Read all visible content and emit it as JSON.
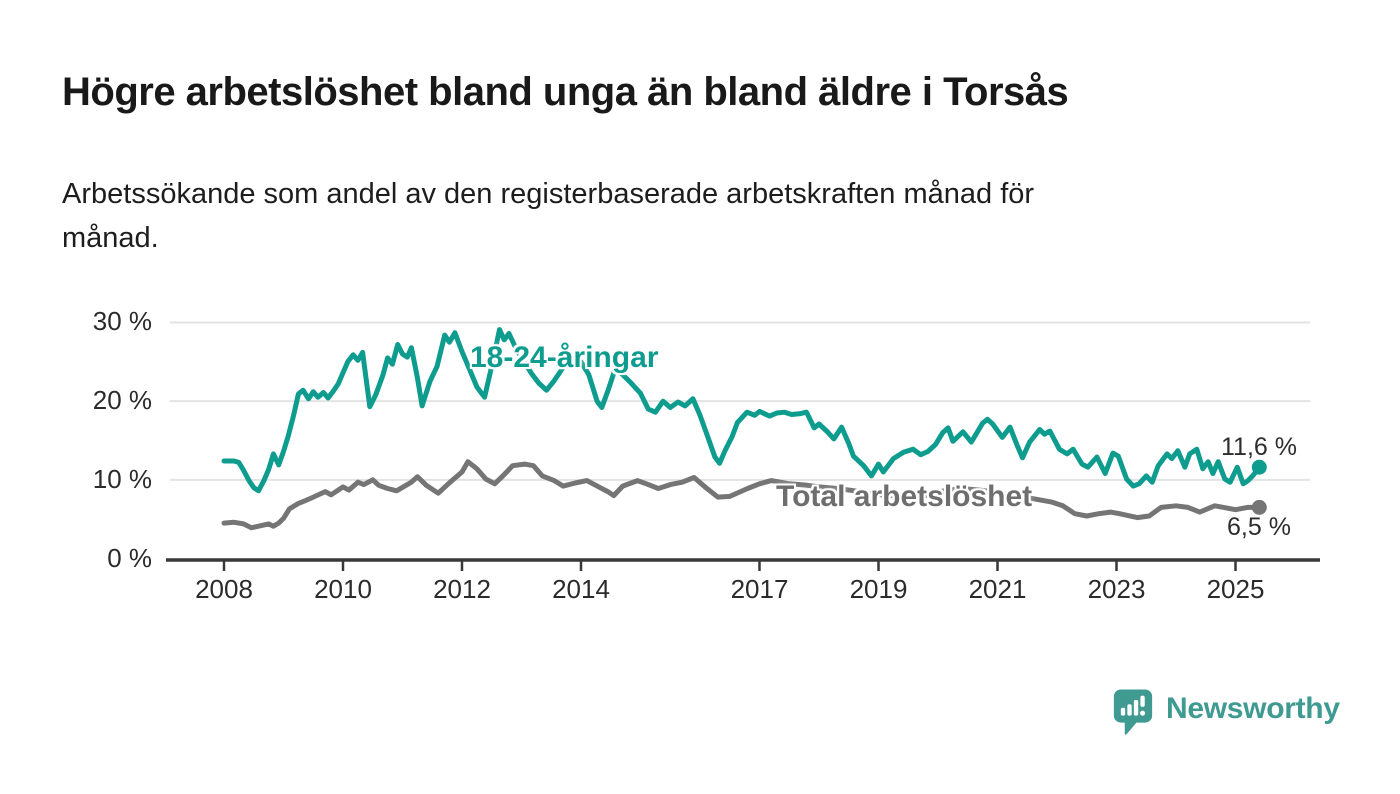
{
  "header": {
    "title": "Högre arbetslöshet bland unga än bland äldre i Torsås",
    "subtitle_lines": [
      "Arbetssökande som andel av den registerbaserade arbetskraften månad för",
      "månad."
    ]
  },
  "chart_data": {
    "type": "line",
    "unit": "%",
    "grid": true,
    "x_axis": {
      "ticks": [
        {
          "year": 2008,
          "label": "2008"
        },
        {
          "year": 2010,
          "label": "2010"
        },
        {
          "year": 2012,
          "label": "2012"
        },
        {
          "year": 2014,
          "label": "2014"
        },
        {
          "year": 2017,
          "label": "2017"
        },
        {
          "year": 2019,
          "label": "2019"
        },
        {
          "year": 2021,
          "label": "2021"
        },
        {
          "year": 2023,
          "label": "2023"
        },
        {
          "year": 2025,
          "label": "2025"
        }
      ],
      "range_years": [
        2007.2,
        2026.4
      ]
    },
    "y_axis": {
      "ticks": [
        {
          "value": 0,
          "label": "0 %"
        },
        {
          "value": 10,
          "label": "10 %"
        },
        {
          "value": 20,
          "label": "20 %"
        },
        {
          "value": 30,
          "label": "30 %"
        }
      ],
      "range": [
        0,
        30
      ]
    },
    "series": [
      {
        "name": "18-24-åringar",
        "color": "#0e9c8f",
        "end_label": "11,6 %",
        "end_value": 11.6,
        "points": [
          [
            2008.0,
            12.4
          ],
          [
            2008.17,
            12.4
          ],
          [
            2008.25,
            12.2
          ],
          [
            2008.33,
            11.2
          ],
          [
            2008.42,
            9.9
          ],
          [
            2008.5,
            9.0
          ],
          [
            2008.58,
            8.6
          ],
          [
            2008.67,
            9.9
          ],
          [
            2008.75,
            11.3
          ],
          [
            2008.83,
            13.3
          ],
          [
            2008.92,
            11.9
          ],
          [
            2009.0,
            13.6
          ],
          [
            2009.08,
            15.6
          ],
          [
            2009.17,
            18.2
          ],
          [
            2009.25,
            20.9
          ],
          [
            2009.33,
            21.4
          ],
          [
            2009.42,
            20.3
          ],
          [
            2009.5,
            21.2
          ],
          [
            2009.58,
            20.5
          ],
          [
            2009.67,
            21.1
          ],
          [
            2009.75,
            20.4
          ],
          [
            2009.83,
            21.2
          ],
          [
            2009.92,
            22.2
          ],
          [
            2010.0,
            23.6
          ],
          [
            2010.08,
            25.0
          ],
          [
            2010.17,
            25.9
          ],
          [
            2010.25,
            25.2
          ],
          [
            2010.33,
            26.2
          ],
          [
            2010.45,
            19.3
          ],
          [
            2010.55,
            20.8
          ],
          [
            2010.67,
            23.3
          ],
          [
            2010.75,
            25.5
          ],
          [
            2010.83,
            24.7
          ],
          [
            2010.92,
            27.2
          ],
          [
            2011.0,
            26.0
          ],
          [
            2011.08,
            25.6
          ],
          [
            2011.15,
            26.8
          ],
          [
            2011.25,
            23.0
          ],
          [
            2011.33,
            19.4
          ],
          [
            2011.46,
            22.5
          ],
          [
            2011.58,
            24.4
          ],
          [
            2011.71,
            28.4
          ],
          [
            2011.79,
            27.5
          ],
          [
            2011.88,
            28.7
          ],
          [
            2012.0,
            26.3
          ],
          [
            2012.13,
            24.0
          ],
          [
            2012.25,
            21.8
          ],
          [
            2012.38,
            20.5
          ],
          [
            2012.5,
            24.5
          ],
          [
            2012.63,
            29.1
          ],
          [
            2012.71,
            27.8
          ],
          [
            2012.79,
            28.6
          ],
          [
            2012.92,
            26.5
          ],
          [
            2013.04,
            25.0
          ],
          [
            2013.17,
            23.5
          ],
          [
            2013.29,
            22.3
          ],
          [
            2013.42,
            21.4
          ],
          [
            2013.54,
            22.5
          ],
          [
            2013.71,
            24.4
          ],
          [
            2013.88,
            25.4
          ],
          [
            2014.0,
            25.0
          ],
          [
            2014.13,
            23.4
          ],
          [
            2014.27,
            20.0
          ],
          [
            2014.35,
            19.2
          ],
          [
            2014.46,
            21.5
          ],
          [
            2014.58,
            24.2
          ],
          [
            2014.71,
            23.3
          ],
          [
            2014.83,
            22.4
          ],
          [
            2015.0,
            21.0
          ],
          [
            2015.13,
            19.0
          ],
          [
            2015.25,
            18.6
          ],
          [
            2015.38,
            20.0
          ],
          [
            2015.5,
            19.2
          ],
          [
            2015.63,
            19.9
          ],
          [
            2015.75,
            19.4
          ],
          [
            2015.88,
            20.3
          ],
          [
            2016.0,
            18.2
          ],
          [
            2016.13,
            15.5
          ],
          [
            2016.25,
            12.9
          ],
          [
            2016.33,
            12.1
          ],
          [
            2016.42,
            13.7
          ],
          [
            2016.54,
            15.5
          ],
          [
            2016.63,
            17.3
          ],
          [
            2016.79,
            18.6
          ],
          [
            2016.92,
            18.2
          ],
          [
            2017.0,
            18.7
          ],
          [
            2017.17,
            18.1
          ],
          [
            2017.29,
            18.5
          ],
          [
            2017.42,
            18.6
          ],
          [
            2017.54,
            18.3
          ],
          [
            2017.67,
            18.4
          ],
          [
            2017.79,
            18.6
          ],
          [
            2017.92,
            16.6
          ],
          [
            2018.0,
            17.1
          ],
          [
            2018.13,
            16.2
          ],
          [
            2018.25,
            15.2
          ],
          [
            2018.38,
            16.7
          ],
          [
            2018.5,
            14.6
          ],
          [
            2018.58,
            13.0
          ],
          [
            2018.75,
            11.8
          ],
          [
            2018.88,
            10.5
          ],
          [
            2019.0,
            12.0
          ],
          [
            2019.08,
            11.0
          ],
          [
            2019.25,
            12.7
          ],
          [
            2019.42,
            13.5
          ],
          [
            2019.58,
            13.9
          ],
          [
            2019.71,
            13.2
          ],
          [
            2019.83,
            13.6
          ],
          [
            2019.96,
            14.5
          ],
          [
            2020.08,
            16.0
          ],
          [
            2020.17,
            16.6
          ],
          [
            2020.25,
            14.9
          ],
          [
            2020.42,
            16.1
          ],
          [
            2020.56,
            14.8
          ],
          [
            2020.75,
            17.2
          ],
          [
            2020.83,
            17.7
          ],
          [
            2020.92,
            17.1
          ],
          [
            2021.08,
            15.4
          ],
          [
            2021.21,
            16.7
          ],
          [
            2021.33,
            14.4
          ],
          [
            2021.42,
            12.8
          ],
          [
            2021.54,
            14.8
          ],
          [
            2021.71,
            16.4
          ],
          [
            2021.79,
            15.8
          ],
          [
            2021.88,
            16.2
          ],
          [
            2022.04,
            13.9
          ],
          [
            2022.17,
            13.3
          ],
          [
            2022.27,
            13.9
          ],
          [
            2022.42,
            12.0
          ],
          [
            2022.52,
            11.6
          ],
          [
            2022.67,
            12.9
          ],
          [
            2022.81,
            10.8
          ],
          [
            2022.94,
            13.4
          ],
          [
            2023.03,
            13.0
          ],
          [
            2023.17,
            10.1
          ],
          [
            2023.28,
            9.2
          ],
          [
            2023.38,
            9.5
          ],
          [
            2023.5,
            10.5
          ],
          [
            2023.6,
            9.7
          ],
          [
            2023.7,
            11.8
          ],
          [
            2023.85,
            13.3
          ],
          [
            2023.93,
            12.7
          ],
          [
            2024.03,
            13.7
          ],
          [
            2024.15,
            11.6
          ],
          [
            2024.23,
            13.3
          ],
          [
            2024.35,
            13.9
          ],
          [
            2024.45,
            11.4
          ],
          [
            2024.54,
            12.3
          ],
          [
            2024.62,
            10.8
          ],
          [
            2024.71,
            12.3
          ],
          [
            2024.82,
            10.1
          ],
          [
            2024.91,
            9.7
          ],
          [
            2025.03,
            11.6
          ],
          [
            2025.13,
            9.5
          ],
          [
            2025.21,
            9.9
          ],
          [
            2025.3,
            10.6
          ],
          [
            2025.4,
            11.6
          ]
        ]
      },
      {
        "name": "Total arbetslöshet",
        "color": "#757575",
        "end_label": "6,5 %",
        "end_value": 6.5,
        "points": [
          [
            2008.0,
            4.5
          ],
          [
            2008.17,
            4.6
          ],
          [
            2008.33,
            4.4
          ],
          [
            2008.46,
            3.9
          ],
          [
            2008.58,
            4.1
          ],
          [
            2008.75,
            4.4
          ],
          [
            2008.83,
            4.1
          ],
          [
            2008.92,
            4.5
          ],
          [
            2009.0,
            5.1
          ],
          [
            2009.1,
            6.3
          ],
          [
            2009.25,
            7.0
          ],
          [
            2009.35,
            7.3
          ],
          [
            2009.5,
            7.8
          ],
          [
            2009.7,
            8.5
          ],
          [
            2009.8,
            8.1
          ],
          [
            2010.0,
            9.1
          ],
          [
            2010.1,
            8.7
          ],
          [
            2010.25,
            9.7
          ],
          [
            2010.35,
            9.4
          ],
          [
            2010.5,
            10.0
          ],
          [
            2010.6,
            9.3
          ],
          [
            2010.75,
            8.9
          ],
          [
            2010.9,
            8.6
          ],
          [
            2011.15,
            9.7
          ],
          [
            2011.25,
            10.4
          ],
          [
            2011.4,
            9.3
          ],
          [
            2011.6,
            8.3
          ],
          [
            2011.8,
            9.7
          ],
          [
            2012.0,
            11.0
          ],
          [
            2012.1,
            12.3
          ],
          [
            2012.25,
            11.4
          ],
          [
            2012.4,
            10.1
          ],
          [
            2012.55,
            9.5
          ],
          [
            2012.7,
            10.6
          ],
          [
            2012.85,
            11.8
          ],
          [
            2013.05,
            12.0
          ],
          [
            2013.2,
            11.8
          ],
          [
            2013.35,
            10.5
          ],
          [
            2013.55,
            9.9
          ],
          [
            2013.7,
            9.2
          ],
          [
            2013.9,
            9.6
          ],
          [
            2014.1,
            9.9
          ],
          [
            2014.3,
            9.1
          ],
          [
            2014.45,
            8.5
          ],
          [
            2014.55,
            8.0
          ],
          [
            2014.7,
            9.2
          ],
          [
            2014.95,
            9.9
          ],
          [
            2015.1,
            9.5
          ],
          [
            2015.3,
            8.9
          ],
          [
            2015.5,
            9.4
          ],
          [
            2015.7,
            9.7
          ],
          [
            2015.9,
            10.3
          ],
          [
            2016.1,
            9.0
          ],
          [
            2016.3,
            7.8
          ],
          [
            2016.5,
            7.9
          ],
          [
            2016.8,
            8.9
          ],
          [
            2017.0,
            9.5
          ],
          [
            2017.2,
            9.9
          ],
          [
            2017.5,
            9.5
          ],
          [
            2017.8,
            9.3
          ],
          [
            2018.0,
            9.1
          ],
          [
            2018.3,
            8.9
          ],
          [
            2018.6,
            8.6
          ],
          [
            2018.9,
            8.2
          ],
          [
            2019.2,
            8.0
          ],
          [
            2019.5,
            7.9
          ],
          [
            2019.8,
            8.0
          ],
          [
            2020.1,
            8.6
          ],
          [
            2020.4,
            8.9
          ],
          [
            2020.7,
            8.7
          ],
          [
            2021.0,
            8.4
          ],
          [
            2021.3,
            8.0
          ],
          [
            2021.6,
            7.6
          ],
          [
            2021.9,
            7.2
          ],
          [
            2022.1,
            6.7
          ],
          [
            2022.3,
            5.7
          ],
          [
            2022.5,
            5.4
          ],
          [
            2022.7,
            5.7
          ],
          [
            2022.9,
            5.9
          ],
          [
            2023.05,
            5.7
          ],
          [
            2023.35,
            5.2
          ],
          [
            2023.55,
            5.4
          ],
          [
            2023.75,
            6.5
          ],
          [
            2024.0,
            6.7
          ],
          [
            2024.2,
            6.5
          ],
          [
            2024.4,
            5.9
          ],
          [
            2024.65,
            6.7
          ],
          [
            2024.8,
            6.5
          ],
          [
            2025.0,
            6.2
          ],
          [
            2025.2,
            6.5
          ],
          [
            2025.4,
            6.5
          ]
        ]
      }
    ]
  },
  "footer": {
    "brand": "Newsworthy",
    "brand_color": "#3f9a91"
  },
  "colors": {
    "grid": "#e3e3e3",
    "axis": "#383838",
    "young_series": "#0e9c8f",
    "total_series": "#757575"
  }
}
